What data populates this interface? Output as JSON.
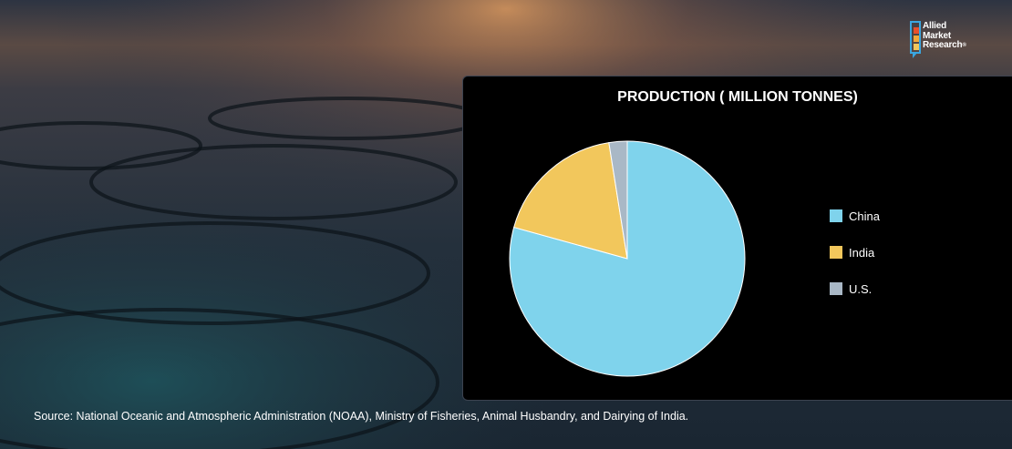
{
  "source_text": "Source: National Oceanic and Atmospheric Administration (NOAA), Ministry of Fisheries, Animal Husbandry, and Dairying of India.",
  "logo": {
    "line1": "Allied",
    "line2": "Market",
    "line3": "Research",
    "mark": "®",
    "icon": "allied-market-research-logo-icon"
  },
  "colors": {
    "china": "#7fd3ec",
    "india": "#f2c75c",
    "us": "#a9b8c6",
    "panel": "#000000"
  },
  "chart_data": {
    "type": "pie",
    "title": "PRODUCTION ( MILLION TONNES)",
    "categories": [
      "China",
      "India",
      "U.S."
    ],
    "values": [
      79.3,
      18.2,
      2.5
    ],
    "legend_position": "right",
    "grid": false
  }
}
